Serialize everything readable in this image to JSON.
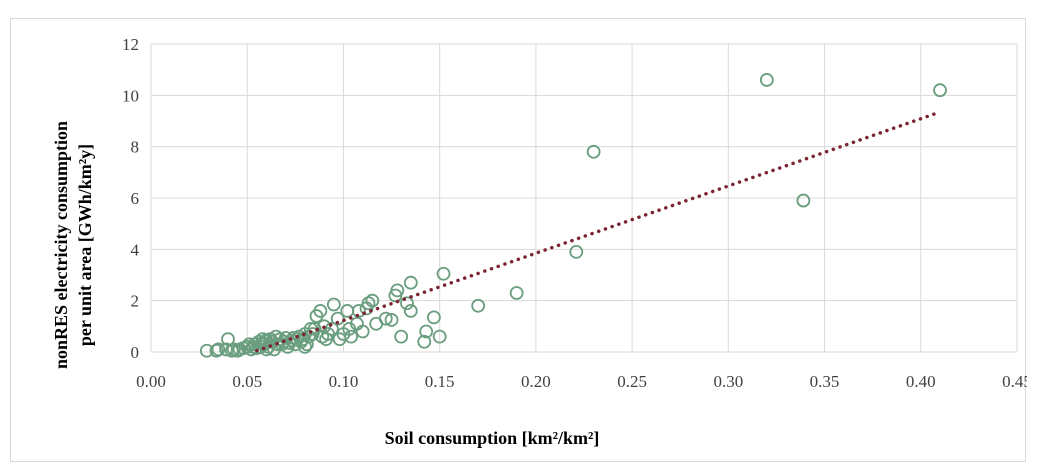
{
  "chart_data": {
    "type": "scatter",
    "title": "",
    "xlabel": "Soil consumption [km²/km²]",
    "ylabel_line1": "nonRES electricity consumption",
    "ylabel_line2": "per unit area [GWh/km²y]",
    "xlim": [
      0,
      0.45
    ],
    "ylim": [
      0,
      12
    ],
    "x_ticks": [
      "0.00",
      "0.05",
      "0.10",
      "0.15",
      "0.20",
      "0.25",
      "0.30",
      "0.35",
      "0.40",
      "0.45"
    ],
    "y_ticks": [
      "0",
      "2",
      "4",
      "6",
      "8",
      "10",
      "12"
    ],
    "grid": true,
    "marker": "hollow-circle",
    "marker_color": "#6a9e7f",
    "trendline": {
      "type": "linear",
      "style": "dotted",
      "color": "#7b2331",
      "x": [
        0.055,
        0.41
      ],
      "y": [
        0.05,
        9.35
      ]
    },
    "series": [
      {
        "x": [
          0.41,
          0.32,
          0.339,
          0.23,
          0.221,
          0.19,
          0.17,
          0.152,
          0.15,
          0.147,
          0.143,
          0.142,
          0.135,
          0.135,
          0.133,
          0.13,
          0.128,
          0.127,
          0.125,
          0.122,
          0.117,
          0.115,
          0.113,
          0.112,
          0.11,
          0.108,
          0.107,
          0.104,
          0.103,
          0.102,
          0.1,
          0.098,
          0.097,
          0.095,
          0.094,
          0.092,
          0.091,
          0.09,
          0.089,
          0.088,
          0.086,
          0.085,
          0.084,
          0.083,
          0.082,
          0.081,
          0.08,
          0.08,
          0.079,
          0.078,
          0.077,
          0.076,
          0.075,
          0.074,
          0.073,
          0.072,
          0.071,
          0.07,
          0.069,
          0.068,
          0.067,
          0.066,
          0.065,
          0.064,
          0.063,
          0.062,
          0.061,
          0.06,
          0.06,
          0.059,
          0.058,
          0.058,
          0.057,
          0.056,
          0.055,
          0.054,
          0.053,
          0.052,
          0.051,
          0.05,
          0.048,
          0.046,
          0.045,
          0.043,
          0.042,
          0.04,
          0.039,
          0.035,
          0.034,
          0.029
        ],
        "y": [
          10.2,
          10.6,
          5.9,
          7.8,
          3.9,
          2.3,
          1.8,
          3.05,
          0.6,
          1.35,
          0.8,
          0.4,
          2.7,
          1.6,
          1.9,
          0.6,
          2.4,
          2.2,
          1.25,
          1.3,
          1.1,
          2.0,
          1.9,
          1.7,
          0.8,
          1.6,
          1.1,
          0.6,
          0.9,
          1.6,
          0.7,
          0.5,
          1.3,
          1.85,
          0.9,
          0.7,
          0.5,
          1.0,
          0.6,
          1.6,
          1.4,
          0.9,
          0.7,
          0.9,
          0.6,
          0.3,
          0.2,
          0.7,
          0.5,
          0.4,
          0.6,
          0.5,
          0.3,
          0.55,
          0.45,
          0.35,
          0.2,
          0.55,
          0.4,
          0.3,
          0.5,
          0.3,
          0.6,
          0.1,
          0.4,
          0.5,
          0.2,
          0.45,
          0.1,
          0.3,
          0.35,
          0.5,
          0.2,
          0.4,
          0.15,
          0.3,
          0.2,
          0.1,
          0.3,
          0.2,
          0.15,
          0.1,
          0.05,
          0.1,
          0.05,
          0.5,
          0.1,
          0.1,
          0.05,
          0.05
        ]
      }
    ]
  }
}
